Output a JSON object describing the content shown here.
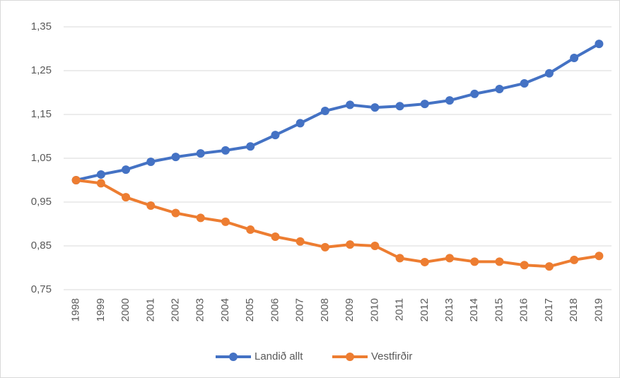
{
  "chart_data": {
    "type": "line",
    "categories": [
      "1998",
      "1999",
      "2000",
      "2001",
      "2002",
      "2003",
      "2004",
      "2005",
      "2006",
      "2007",
      "2008",
      "2009",
      "2010",
      "2011",
      "2012",
      "2013",
      "2014",
      "2015",
      "2016",
      "2017",
      "2018",
      "2019"
    ],
    "series": [
      {
        "name": "Landið allt",
        "color": "#4472c4",
        "values": [
          1.0,
          1.013,
          1.024,
          1.042,
          1.053,
          1.061,
          1.068,
          1.077,
          1.103,
          1.13,
          1.158,
          1.172,
          1.166,
          1.169,
          1.174,
          1.182,
          1.197,
          1.208,
          1.221,
          1.244,
          1.279,
          1.311
        ]
      },
      {
        "name": "Vestfirðir",
        "color": "#ed7d31",
        "values": [
          1.0,
          0.993,
          0.961,
          0.942,
          0.925,
          0.914,
          0.905,
          0.887,
          0.871,
          0.86,
          0.847,
          0.853,
          0.85,
          0.822,
          0.813,
          0.822,
          0.814,
          0.814,
          0.806,
          0.803,
          0.818,
          0.827
        ]
      }
    ],
    "ylim": [
      0.75,
      1.35
    ],
    "yticks": [
      {
        "value": 0.75,
        "label": "0,75"
      },
      {
        "value": 0.85,
        "label": "0,85"
      },
      {
        "value": 0.95,
        "label": "0,95"
      },
      {
        "value": 1.05,
        "label": "1,05"
      },
      {
        "value": 1.15,
        "label": "1,15"
      },
      {
        "value": 1.25,
        "label": "1,25"
      },
      {
        "value": 1.35,
        "label": "1,35"
      }
    ],
    "grid": true,
    "legend": "bottom"
  }
}
